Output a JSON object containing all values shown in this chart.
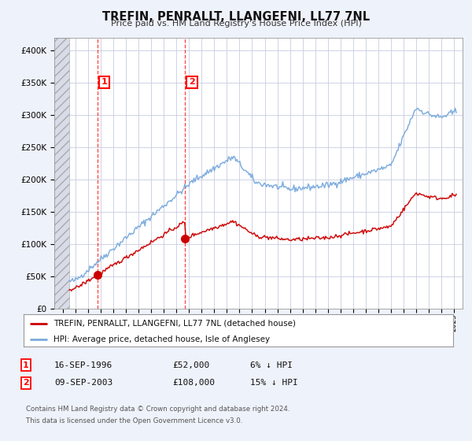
{
  "title": "TREFIN, PENRALLT, LLANGEFNI, LL77 7NL",
  "subtitle": "Price paid vs. HM Land Registry's House Price Index (HPI)",
  "ylim": [
    0,
    420000
  ],
  "yticks": [
    0,
    50000,
    100000,
    150000,
    200000,
    250000,
    300000,
    350000,
    400000
  ],
  "ytick_labels": [
    "£0",
    "£50K",
    "£100K",
    "£150K",
    "£200K",
    "£250K",
    "£300K",
    "£350K",
    "£400K"
  ],
  "xlim_start": 1993.3,
  "xlim_end": 2025.7,
  "hatch_end": 1994.5,
  "point1_x": 1996.71,
  "point1_y": 52000,
  "point1_label": "1",
  "point2_x": 2003.69,
  "point2_y": 108000,
  "point2_label": "2",
  "red_line_color": "#cc0000",
  "blue_line_color": "#7aaadd",
  "hpi_line_label": "HPI: Average price, detached house, Isle of Anglesey",
  "property_line_label": "TREFIN, PENRALLT, LLANGEFNI, LL77 7NL (detached house)",
  "footer1": "Contains HM Land Registry data © Crown copyright and database right 2024.",
  "footer2": "This data is licensed under the Open Government Licence v3.0.",
  "background_color": "#eef2fa",
  "plot_background": "#ffffff",
  "grid_color": "#c8cce0",
  "annotation1": "16-SEP-1996",
  "annotation1_price": "£52,000",
  "annotation1_hpi": "6% ↓ HPI",
  "annotation2": "09-SEP-2003",
  "annotation2_price": "£108,000",
  "annotation2_hpi": "15% ↓ HPI"
}
